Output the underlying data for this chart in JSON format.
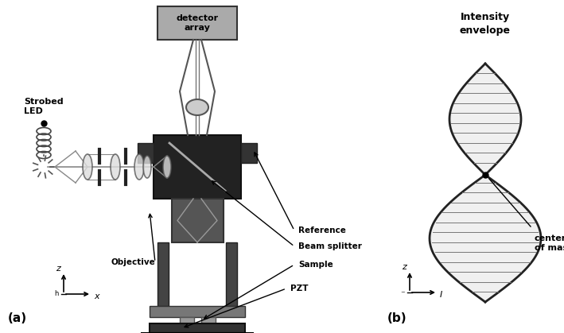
{
  "fig_width": 7.09,
  "fig_height": 4.19,
  "dpi": 100,
  "bg_color": "#ffffff",
  "panel_a_label": "(a)",
  "panel_b_label": "(b)",
  "det_text": "detector\narray",
  "led_text": "Strobed\nLED",
  "ref_text": "Reference",
  "obj_text": "Objective",
  "bs_text": "Beam splitter",
  "samp_text": "Sample",
  "pzt_text": "PZT",
  "int_env_text": "Intensity\nenvelope",
  "com_text": "center\nof mass"
}
